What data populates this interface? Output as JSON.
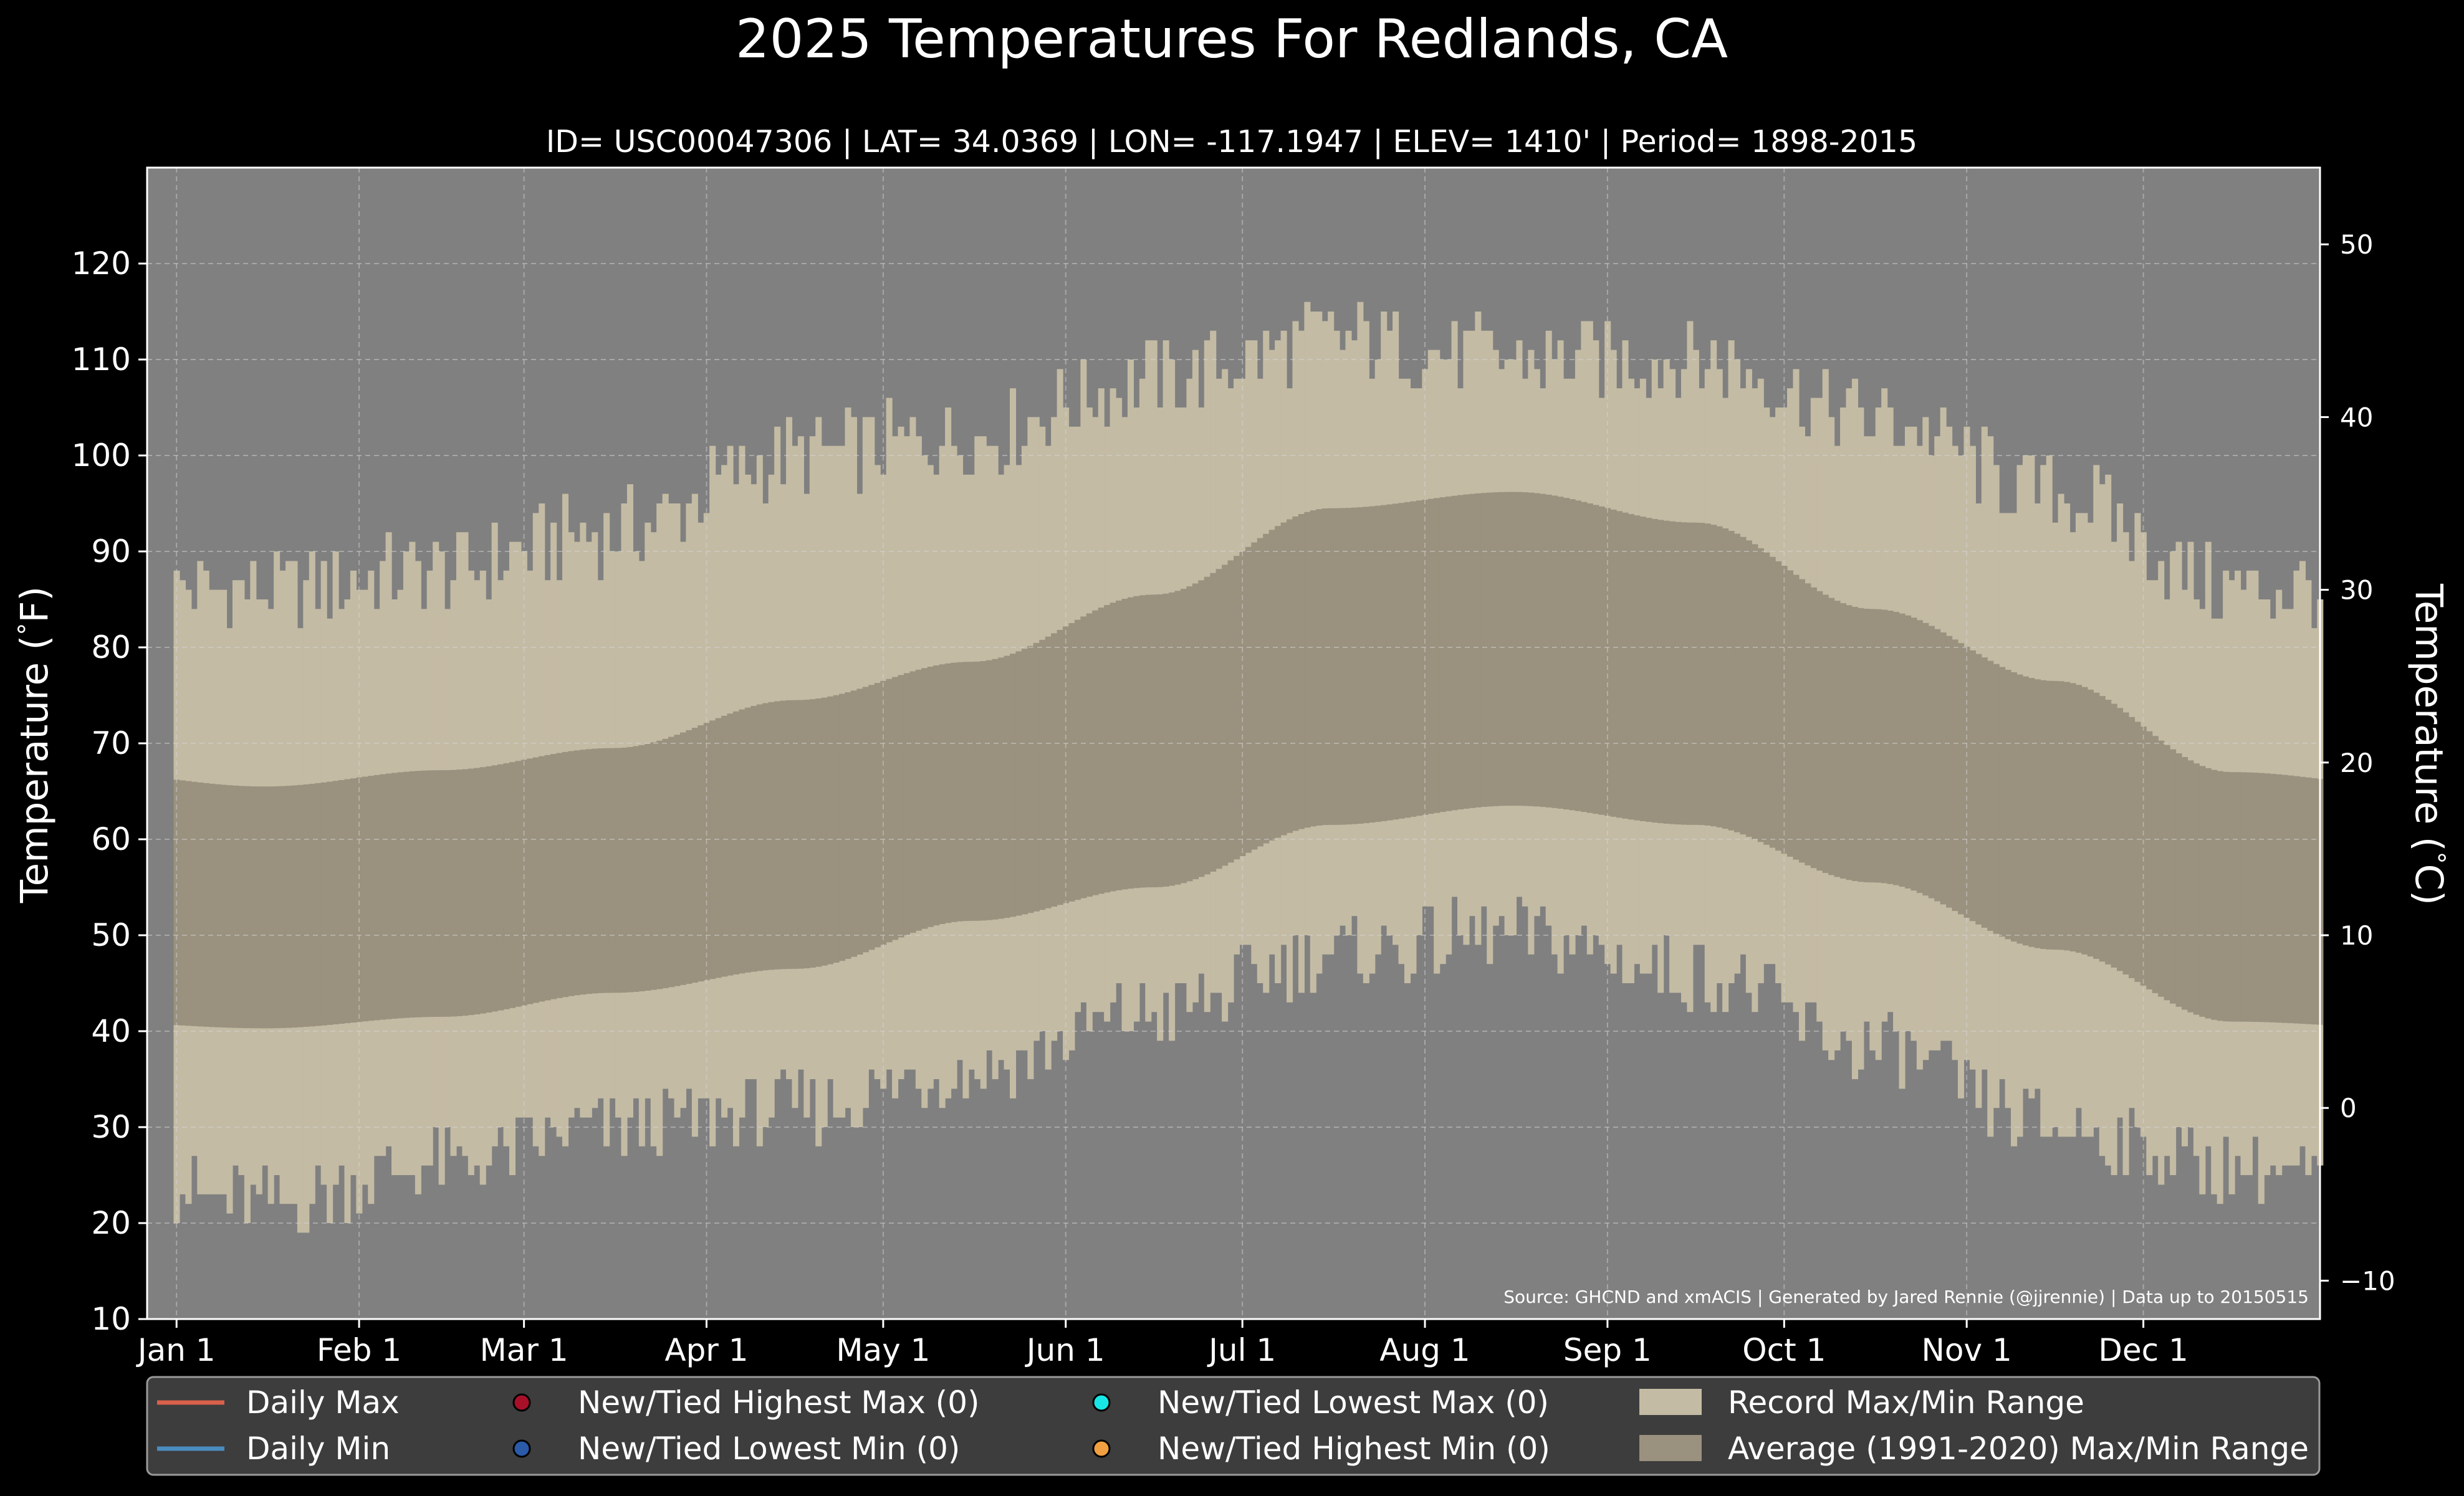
{
  "chart_data": {
    "type": "area",
    "title": "2025 Temperatures For Redlands, CA",
    "subtitle": "ID= USC00047306 | LAT= 34.0369 | LON= -117.1947 | ELEV= 1410' | Period= 1898-2015",
    "ylabel": "Temperature ($^\\circ$F)",
    "ylabel_text": "Temperature (",
    "ylabel_unit": "F)",
    "ylabel_right_text": "Temperature (",
    "ylabel_right_unit": "C)",
    "degree_symbol": "°",
    "ylim": [
      10,
      130
    ],
    "y_ticks": [
      10,
      20,
      30,
      40,
      50,
      60,
      70,
      80,
      90,
      100,
      110,
      120
    ],
    "y2_ticks": [
      -10,
      0,
      10,
      20,
      30,
      40,
      50
    ],
    "y2_tick_labels": [
      "−10",
      "0",
      "10",
      "20",
      "30",
      "40",
      "50"
    ],
    "x_ticks": [
      {
        "label": "Jan 1",
        "day": 1
      },
      {
        "label": "Feb 1",
        "day": 32
      },
      {
        "label": "Mar 1",
        "day": 60
      },
      {
        "label": "Apr 1",
        "day": 91
      },
      {
        "label": "May 1",
        "day": 121
      },
      {
        "label": "Jun 1",
        "day": 152
      },
      {
        "label": "Jul 1",
        "day": 182
      },
      {
        "label": "Aug 1",
        "day": 213
      },
      {
        "label": "Sep 1",
        "day": 244
      },
      {
        "label": "Oct 1",
        "day": 274
      },
      {
        "label": "Nov 1",
        "day": 305
      },
      {
        "label": "Dec 1",
        "day": 335
      }
    ],
    "xlim": [
      -4,
      365
    ],
    "record_max_by_month": [
      86,
      88,
      92,
      100,
      102,
      108,
      112,
      110,
      110,
      104,
      96,
      86
    ],
    "record_min_by_month": [
      22,
      26,
      30,
      32,
      36,
      42,
      48,
      50,
      46,
      38,
      30,
      26
    ],
    "avg_max_by_month": [
      65.5,
      67.2,
      69.5,
      74.5,
      78.5,
      85.5,
      94.5,
      96.2,
      93,
      84,
      76.5,
      67
    ],
    "avg_min_by_month": [
      40.3,
      41.5,
      44,
      46.5,
      51.5,
      55,
      61.5,
      63.5,
      61.5,
      55.5,
      48.5,
      41
    ],
    "legend": [
      {
        "label": "Daily Max",
        "kind": "line",
        "color": "#d9604a"
      },
      {
        "label": "Daily Min",
        "kind": "line",
        "color": "#4a8cbf"
      },
      {
        "label": "New/Tied Highest Max (0)",
        "kind": "dot",
        "color": "#a8102a"
      },
      {
        "label": "New/Tied Lowest Min (0)",
        "kind": "dot",
        "color": "#2a5aa8"
      },
      {
        "label": "New/Tied Lowest Max (0)",
        "kind": "dot",
        "color": "#18e6e6"
      },
      {
        "label": "New/Tied Highest Min (0)",
        "kind": "dot",
        "color": "#f0a040"
      },
      {
        "label": "Record Max/Min Range",
        "kind": "patch",
        "color": "#c4bba4"
      },
      {
        "label": "Average (1991-2020) Max/Min Range",
        "kind": "patch",
        "color": "#9a917e"
      }
    ],
    "legend_placement": "bottom",
    "source": "Source: GHCND and xmACIS | Generated by Jared Rennie (@jjrennie) | Data up to 20150515",
    "colors": {
      "background": "#000000",
      "plot_bg": "#808080",
      "record_range": "#c4bba4",
      "average_range": "#9a917e",
      "legend_bg": "#3d3d3d"
    },
    "grid": true
  }
}
